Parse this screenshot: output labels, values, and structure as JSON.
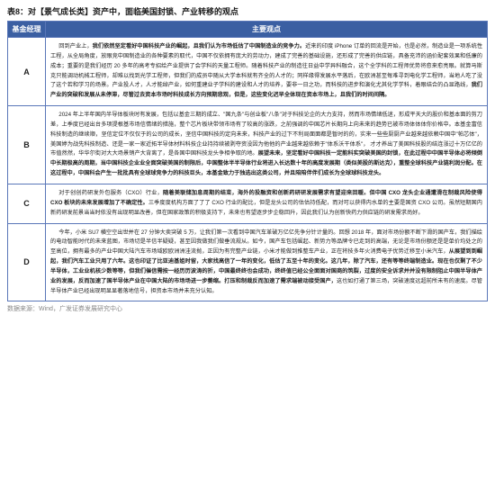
{
  "title": "表8：对【景气成长类】资产中，面临美国封锁、产业转移的观点",
  "header": {
    "col1": "基金经理",
    "col2": "主要观点"
  },
  "rows": [
    {
      "mgr": "A",
      "paras": [
        [
          {
            "t": "回到产业上，",
            "b": false
          },
          {
            "t": "我们依然坚定看好中国科技产业的崛起，且我们认为市场低估了中国制造业的竞争力。",
            "b": true
          },
          {
            "t": "近来的印度 iPhone 订单的回流是开始，也是必然，制造业是一项系统性工程，从全局角度，放眼竞中国制造业的各种要素的取代，中国不仅依拥有庞大的劳动力，建成了完善的基础设施，还形成了完善的供应链，具备充沛的涵价配套效果和低廉的成本；重要的是我们经历 20 多年的高考专招给产业提供了会学科的天量工程师。随着科技产业的制造往日益中学异科融合，这个全学科的工程师优势将愈来愈亮眼。就算马斯克只能调动机械工程师，却难以找到光学工程师，但我们的成员中随从大学本科就有齐全的人才的；同样缘得发展水平落后，在欧洲甚至每难寻到电化学工程师，当地人吃了没了这个若和学习的场景。产业投人才，人才能绰产业，如何重建业子学科的建设和人才的培养，要非一日之功，而科技的进步和演化尤其化学学科，着眼结合的凸显路线，",
            "b": false
          },
          {
            "t": "我们产业的突破和发展从未停滞，尽管过去资本市场时科技成长方向预期悲观，但是，这些变化迟早全体现在资本市场上，且我们的时间间隔。",
            "b": true
          }
        ]
      ]
    },
    {
      "mgr": "B",
      "paras": [
        [
          {
            "t": "2024 年上半年国内半导体板块时有发展，包括以基金三期的成立、\"国九条\"与创业板\"八条\"对于科技论企的大力支持，然而市场情绪低迷，形成平天大的股价和基本面的剪刀差，上季度已经出台多项提根基市场信情绪的措施，整个芯片板块带领市场有了较高的涨跌，之前强调的中国芯片长期向上向未来的趋势已被市场体体体你价格中。本基金富信科技制造的继续顺，坚信定位不仅仅于的公司的成长，坚信中国科技的定向未来，科技产业的过下不利局面面都是暂时的的，实来一些些厨厨产业越来越依赖中国中\"帕芯体\"，美国婷为战先科技制造、还是一家一家近拓半导体材料科技企业持持续被剥夺资没因为他他的产业越来越依赖于\"体系沃干体系\"， 才才养出了美国科技股的结连涨过十万亿亿的市值然然，华华尔街对大大场景销产大背离了，是各国中国科技龙头争相争取的地。",
            "b": false
          },
          {
            "t": "展望未来，坚定看好中国科技一定能科实突破美国的封锁，在此过程中中国半导体必将倾倒中长期极高的周期，当中国科技企业业全面突破美国的制限后，中国整体半半导体行业将进入长达数十年的高度发展期（类似美股的斯达克），重整全球科技产业链利润分配。在这过程中，中国科会产生一批批具有全球球竞争力的科技巨头，本基金致力于独选出这类公司，并且陪陪伴伴们成长为全球球科技龙头。",
            "b": true
          }
        ]
      ]
    },
    {
      "mgr": "C",
      "paras": [
        [
          {
            "t": "对于创创药研发外包服务（CXO）行业，",
            "b": false
          },
          {
            "t": "随着美联储加息周期的结束，海外的投融资和创新药研研发展需求有望迎来回暖。但中国 CXO 龙头企业通遭滑在制裁风险使得 CXO 板块的未来发展增加了不确定性。",
            "b": true
          },
          {
            "t": "三季度度机构方面了了了 CXO 行业的配比，但是龙头公司的估估持低配，而对可以获得内水单的主要是国资 CXO 公司。虽然短期国内新药研发前景当当时依没有出现明显改善，但在国家政策的积极支持下，未来也有望逐步步企稳回升，因此我们认为创新快药力供应链的研发需求尚好。",
            "b": false
          }
        ]
      ]
    },
    {
      "mgr": "D",
      "paras": [
        [
          {
            "t": "今年，小米 SU7 横空空出世并在 27 分钟大卖突破 5 万，让我们第一次看到中国汽车革破万亿亿先争分针计量的。回想 2018 年，面对市场份额不断下滑的国产车，我们描绘的电动智能时代的未来蓝图，市场切是半信半疑疑，甚至因我做我们做垂流规从。如今，国产车包括崛起、新势力等品牌令已走到的高端，无论是市场份额还是是单价均处之的至高位，拥有最多的产业中国大陆汽车市场域欧欧洲洲洼流抛，正因为有完整产业链，小米才能做到推整车产业，正在将技多年火消费电子优势迁移至小米汽车，",
            "b": false
          },
          {
            "t": "从展望到到崛起，我们汽车工业只用了六年。这也印证了比亚迪基姐时留，大家找高信了一年的变化，低估了五至十年的变化。这几年，除了汽车，还有等等终端制造业。现在也仅剩了不少半导体，工业业机核少数等等，但我们催信需按一经历历波涛的折，中国最终终也会成功，终终值已经公全面面对国商的筑裂，",
            "b": true
          },
          {
            "t": "过度的安全诉求并并没有限制阻止中国半导体产业的发展，反而加速了国半导体产业在中国大陆的市场场进一步萎缩。打压和制裁反而加速了需求端被动接受国产，",
            "b": true
          },
          {
            "t": "这也如打通了第三场，突破速度远超前所未有的速度。尽管半导体产业已经出现明显显著落地信号，担资本市场并未充分认知。",
            "b": false
          }
        ]
      ]
    }
  ],
  "source": "数据来源：Wind，广发证券发展研究中心"
}
